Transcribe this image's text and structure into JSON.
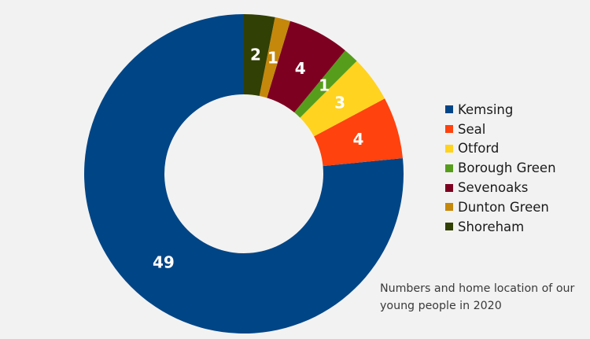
{
  "chart_data": {
    "type": "pie",
    "donut": true,
    "title": "",
    "categories": [
      "Kemsing",
      "Seal",
      "Otford",
      "Borough Green",
      "Sevenoaks",
      "Dunton Green",
      "Shoreham"
    ],
    "values": [
      49,
      4,
      3,
      1,
      4,
      1,
      2
    ],
    "colors": [
      "#004586",
      "#ff420e",
      "#ffd320",
      "#579d1c",
      "#7e0021",
      "#c5880b",
      "#314004"
    ],
    "data_labels": [
      "49",
      "4",
      "3",
      "1",
      "4",
      "1",
      "2"
    ],
    "legend_position": "right",
    "annotation": "Numbers and home location of our young people in 2020"
  }
}
